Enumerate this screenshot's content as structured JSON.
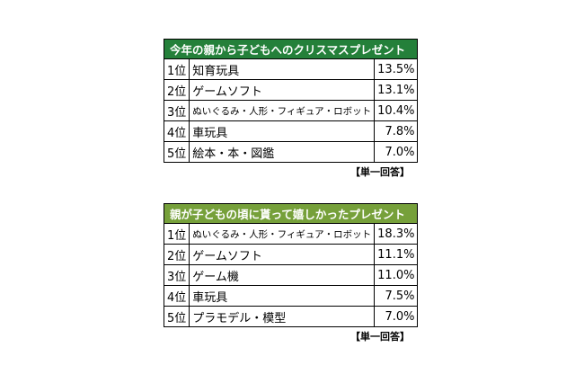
{
  "tables": [
    {
      "title": "今年の親から子どもへのクリスマスプレゼント",
      "header_color": "#24803a",
      "note": "【単一回答】",
      "rows": [
        {
          "rank": "1位",
          "item": "知育玩具",
          "pct": "13.5%"
        },
        {
          "rank": "2位",
          "item": "ゲームソフト",
          "pct": "13.1%"
        },
        {
          "rank": "3位",
          "item": "ぬいぐるみ・人形・フィギュア・ロボット",
          "pct": "10.4%"
        },
        {
          "rank": "4位",
          "item": "車玩具",
          "pct": "7.8%"
        },
        {
          "rank": "5位",
          "item": "絵本・本・図鑑",
          "pct": "7.0%"
        }
      ]
    },
    {
      "title": "親が子どもの頃に貰って嬉しかったプレゼント",
      "header_color": "#76a03a",
      "note": "【単一回答】",
      "rows": [
        {
          "rank": "1位",
          "item": "ぬいぐるみ・人形・フィギュア・ロボット",
          "pct": "18.3%"
        },
        {
          "rank": "2位",
          "item": "ゲームソフト",
          "pct": "11.1%"
        },
        {
          "rank": "3位",
          "item": "ゲーム機",
          "pct": "11.0%"
        },
        {
          "rank": "4位",
          "item": "車玩具",
          "pct": "7.5%"
        },
        {
          "rank": "5位",
          "item": "プラモデル・模型",
          "pct": "7.0%"
        }
      ]
    }
  ]
}
